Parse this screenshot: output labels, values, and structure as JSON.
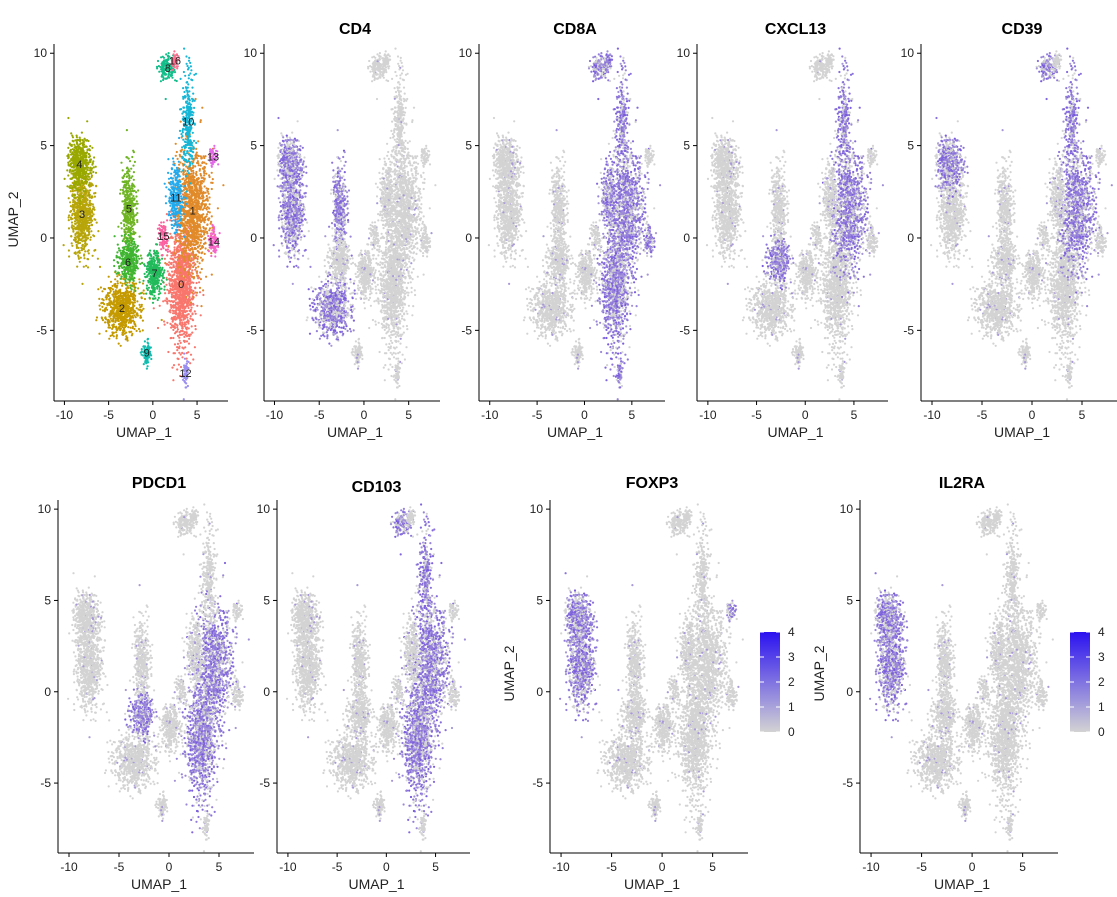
{
  "chart_data": [
    {
      "type": "scatter",
      "kind": "clusters",
      "title": "",
      "xlabel": "UMAP_1",
      "ylabel": "UMAP_2",
      "xlim": [
        -10.5,
        8.5
      ],
      "ylim": [
        -8.5,
        10.5
      ],
      "xticks": [
        -10,
        -5,
        0,
        5
      ],
      "yticks": [
        -5,
        0,
        5,
        10
      ],
      "clusters": [
        {
          "name": "0",
          "color": "#f8766d",
          "cx": 3.2,
          "cy": -2.5
        },
        {
          "name": "1",
          "color": "#e08a2a",
          "cx": 4.5,
          "cy": 1.5
        },
        {
          "name": "2",
          "color": "#c49a00",
          "cx": -3.5,
          "cy": -3.8
        },
        {
          "name": "3",
          "color": "#b7a50a",
          "cx": -8.0,
          "cy": 1.3
        },
        {
          "name": "4",
          "color": "#99a800",
          "cx": -8.3,
          "cy": 4.0
        },
        {
          "name": "5",
          "color": "#6fb424",
          "cx": -2.7,
          "cy": 1.6
        },
        {
          "name": "6",
          "color": "#3fb532",
          "cx": -2.8,
          "cy": -1.3
        },
        {
          "name": "7",
          "color": "#21ba5b",
          "cx": 0.2,
          "cy": -1.9
        },
        {
          "name": "8",
          "color": "#14be8b",
          "cx": 1.7,
          "cy": 9.2
        },
        {
          "name": "9",
          "color": "#10bdb0",
          "cx": -0.7,
          "cy": -6.2
        },
        {
          "name": "10",
          "color": "#16b6d6",
          "cx": 4.0,
          "cy": 6.3
        },
        {
          "name": "11",
          "color": "#22aaee",
          "cx": 2.6,
          "cy": 2.2
        },
        {
          "name": "12",
          "color": "#9a8ef0",
          "cx": 3.7,
          "cy": -7.3
        },
        {
          "name": "13",
          "color": "#e26ae8",
          "cx": 6.8,
          "cy": 4.4
        },
        {
          "name": "14",
          "color": "#f566c8",
          "cx": 6.9,
          "cy": -0.2
        },
        {
          "name": "15",
          "color": "#fb61a0",
          "cx": 1.2,
          "cy": 0.1
        },
        {
          "name": "16",
          "color": "#ff6c8e",
          "cx": 2.5,
          "cy": 9.6
        }
      ]
    },
    {
      "type": "scatter",
      "kind": "feature",
      "title": "CD4",
      "xlabel": "UMAP_1",
      "ylabel": "",
      "xlim": [
        -10.5,
        8.5
      ],
      "ylim": [
        -8.5,
        10.5
      ],
      "xticks": [
        -10,
        -5,
        0,
        5
      ],
      "yticks": [
        -5,
        0,
        5,
        10
      ],
      "high_regions": [
        "4",
        "3",
        "2",
        "5"
      ]
    },
    {
      "type": "scatter",
      "kind": "feature",
      "title": "CD8A",
      "xlabel": "UMAP_1",
      "ylabel": "",
      "xlim": [
        -10.5,
        8.5
      ],
      "ylim": [
        -8.5,
        10.5
      ],
      "xticks": [
        -10,
        -5,
        0,
        5
      ],
      "yticks": [
        -5,
        0,
        5,
        10
      ],
      "high_regions": [
        "0",
        "1",
        "8",
        "10",
        "11",
        "12",
        "14",
        "16"
      ]
    },
    {
      "type": "scatter",
      "kind": "feature",
      "title": "CXCL13",
      "xlabel": "UMAP_1",
      "ylabel": "",
      "xlim": [
        -10.5,
        8.5
      ],
      "ylim": [
        -8.5,
        10.5
      ],
      "xticks": [
        -10,
        -5,
        0,
        5
      ],
      "yticks": [
        -5,
        0,
        5,
        10
      ],
      "high_regions": [
        "6",
        "1",
        "10"
      ]
    },
    {
      "type": "scatter",
      "kind": "feature",
      "title": "CD39",
      "xlabel": "UMAP_1",
      "ylabel": "",
      "xlim": [
        -10.5,
        8.5
      ],
      "ylim": [
        -8.5,
        10.5
      ],
      "xticks": [
        -10,
        -5,
        0,
        5
      ],
      "yticks": [
        -5,
        0,
        5,
        10
      ],
      "high_regions": [
        "4",
        "1",
        "8",
        "10"
      ]
    },
    {
      "type": "scatter",
      "kind": "feature",
      "title": "PDCD1",
      "xlabel": "UMAP_1",
      "ylabel": "",
      "xlim": [
        -10.5,
        8.5
      ],
      "ylim": [
        -8.5,
        10.5
      ],
      "xticks": [
        -10,
        -5,
        0,
        5
      ],
      "yticks": [
        -5,
        0,
        5,
        10
      ],
      "high_regions": [
        "6",
        "1",
        "0"
      ]
    },
    {
      "type": "scatter",
      "kind": "feature",
      "title": "CD103",
      "xlabel": "UMAP_1",
      "ylabel": "",
      "xlim": [
        -10.5,
        8.5
      ],
      "ylim": [
        -8.5,
        10.5
      ],
      "xticks": [
        -10,
        -5,
        0,
        5
      ],
      "yticks": [
        -5,
        0,
        5,
        10
      ],
      "high_regions": [
        "1",
        "0",
        "10",
        "8"
      ]
    },
    {
      "type": "scatter",
      "kind": "feature",
      "title": "FOXP3",
      "xlabel": "UMAP_1",
      "ylabel": "UMAP_2",
      "xlim": [
        -10.5,
        8.5
      ],
      "ylim": [
        -8.5,
        10.5
      ],
      "xticks": [
        -10,
        -5,
        0,
        5
      ],
      "yticks": [
        -5,
        0,
        5,
        10
      ],
      "high_regions": [
        "4",
        "3",
        "13"
      ],
      "colorbar": {
        "min": 0,
        "max": 4,
        "ticks": [
          0,
          1,
          2,
          3,
          4
        ],
        "low_color": "#d3d3d3",
        "high_color": "#2b12f0"
      }
    },
    {
      "type": "scatter",
      "kind": "feature",
      "title": "IL2RA",
      "xlabel": "UMAP_1",
      "ylabel": "UMAP_2",
      "xlim": [
        -10.5,
        8.5
      ],
      "ylim": [
        -8.5,
        10.5
      ],
      "xticks": [
        -10,
        -5,
        0,
        5
      ],
      "yticks": [
        -5,
        0,
        5,
        10
      ],
      "high_regions": [
        "4",
        "3"
      ],
      "colorbar": {
        "min": 0,
        "max": 4,
        "ticks": [
          0,
          1,
          2,
          3,
          4
        ],
        "low_color": "#d3d3d3",
        "high_color": "#2b12f0"
      }
    }
  ],
  "colors": {
    "low": "#d3d3d3",
    "high": "#5a32e0",
    "axis": "#000000"
  }
}
